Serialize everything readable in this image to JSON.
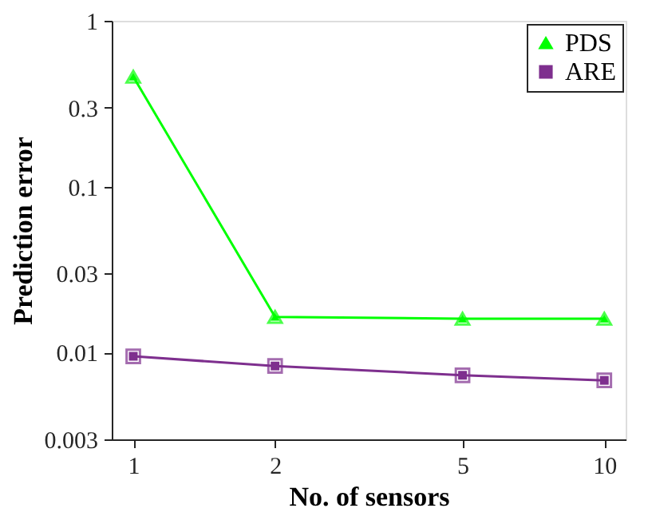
{
  "chart_data": {
    "type": "line",
    "xlabel": "No. of sensors",
    "ylabel": "Prediction error",
    "log": "xy",
    "x": [
      1,
      2,
      5,
      10
    ],
    "xlim": [
      0.9,
      11.1
    ],
    "xticks": [
      1,
      2,
      5,
      10
    ],
    "ylim": [
      0.003,
      1
    ],
    "yticks": [
      0.003,
      0.01,
      0.03,
      0.1,
      0.3,
      1
    ],
    "series": [
      {
        "name": "PDS",
        "color": "#00ff00",
        "marker": "triangle",
        "values": [
          0.46,
          0.0164,
          0.016,
          0.016
        ]
      },
      {
        "name": "ARE",
        "color": "#7e2f8e",
        "marker": "square",
        "values": [
          0.0095,
          0.0083,
          0.0073,
          0.0068
        ]
      }
    ],
    "grid": false,
    "legend": "top right",
    "line_style": "solid"
  }
}
